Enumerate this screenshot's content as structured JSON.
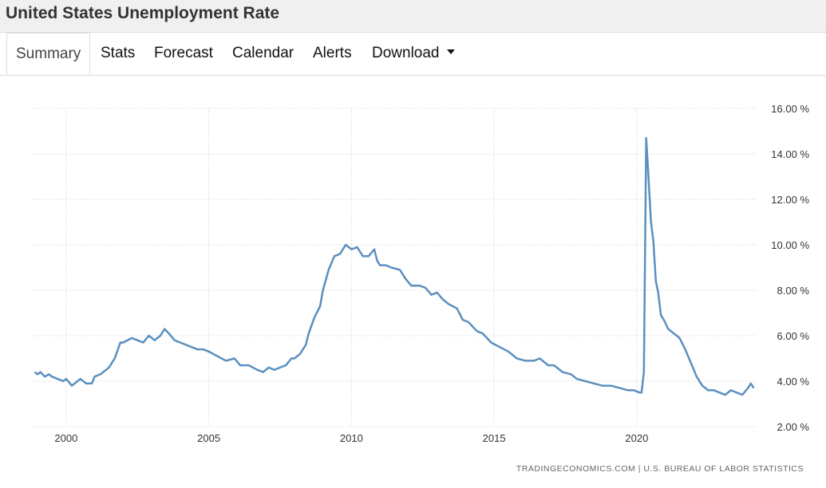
{
  "page_title": "United States Unemployment Rate",
  "tabs": [
    {
      "label": "Summary",
      "active": true
    },
    {
      "label": "Stats",
      "active": false
    },
    {
      "label": "Forecast",
      "active": false
    },
    {
      "label": "Calendar",
      "active": false
    },
    {
      "label": "Alerts",
      "active": false
    },
    {
      "label": "Download",
      "active": false,
      "dropdown": true
    }
  ],
  "source": "TRADINGECONOMICS.COM | U.S. BUREAU OF LABOR STATISTICS",
  "colors": {
    "line": "#5b8fbf",
    "grid": "#d0d0d0"
  },
  "chart_data": {
    "type": "line",
    "title": "",
    "xlabel": "",
    "ylabel": "",
    "xlim": [
      1998.8,
      2024.2
    ],
    "ylim": [
      2,
      16
    ],
    "y_ticks": [
      2,
      4,
      6,
      8,
      10,
      12,
      14,
      16
    ],
    "y_tick_labels": [
      "2.00 %",
      "4.00 %",
      "6.00 %",
      "8.00 %",
      "10.00 %",
      "12.00 %",
      "14.00 %",
      "16.00 %"
    ],
    "x_ticks": [
      2000,
      2005,
      2010,
      2015,
      2020
    ],
    "x_tick_labels": [
      "2000",
      "2005",
      "2010",
      "2015",
      "2020"
    ],
    "grid": true,
    "series": [
      {
        "x": [
          1998.9,
          1999.0,
          1999.1,
          1999.25,
          1999.4,
          1999.5,
          1999.7,
          1999.9,
          2000.0,
          2000.2,
          2000.4,
          2000.5,
          2000.7,
          2000.9,
          2001.0,
          2001.2,
          2001.4,
          2001.5,
          2001.7,
          2001.9,
          2002.0,
          2002.3,
          2002.5,
          2002.7,
          2002.9,
          2003.1,
          2003.3,
          2003.45,
          2003.6,
          2003.8,
          2004.0,
          2004.2,
          2004.4,
          2004.6,
          2004.8,
          2005.0,
          2005.3,
          2005.6,
          2005.9,
          2006.1,
          2006.4,
          2006.7,
          2006.9,
          2007.1,
          2007.3,
          2007.5,
          2007.7,
          2007.9,
          2008.0,
          2008.2,
          2008.4,
          2008.5,
          2008.7,
          2008.9,
          2009.0,
          2009.2,
          2009.4,
          2009.6,
          2009.8,
          2010.0,
          2010.2,
          2010.4,
          2010.6,
          2010.8,
          2010.9,
          2011.0,
          2011.2,
          2011.4,
          2011.7,
          2011.9,
          2012.1,
          2012.4,
          2012.6,
          2012.8,
          2013.0,
          2013.2,
          2013.4,
          2013.7,
          2013.9,
          2014.1,
          2014.4,
          2014.6,
          2014.9,
          2015.2,
          2015.5,
          2015.8,
          2016.1,
          2016.4,
          2016.6,
          2016.9,
          2017.1,
          2017.4,
          2017.7,
          2017.9,
          2018.2,
          2018.5,
          2018.8,
          2019.1,
          2019.4,
          2019.7,
          2019.9,
          2020.1,
          2020.17,
          2020.25,
          2020.33,
          2020.4,
          2020.5,
          2020.58,
          2020.67,
          2020.75,
          2020.85,
          2020.95,
          2021.1,
          2021.3,
          2021.5,
          2021.7,
          2021.9,
          2022.1,
          2022.3,
          2022.5,
          2022.7,
          2022.9,
          2023.1,
          2023.3,
          2023.5,
          2023.7,
          2023.9,
          2024.0,
          2024.1
        ],
        "values": [
          4.4,
          4.3,
          4.4,
          4.2,
          4.3,
          4.2,
          4.1,
          4.0,
          4.1,
          3.8,
          4.0,
          4.1,
          3.9,
          3.9,
          4.2,
          4.3,
          4.5,
          4.6,
          5.0,
          5.7,
          5.7,
          5.9,
          5.8,
          5.7,
          6.0,
          5.8,
          6.0,
          6.3,
          6.1,
          5.8,
          5.7,
          5.6,
          5.5,
          5.4,
          5.4,
          5.3,
          5.1,
          4.9,
          5.0,
          4.7,
          4.7,
          4.5,
          4.4,
          4.6,
          4.5,
          4.6,
          4.7,
          5.0,
          5.0,
          5.2,
          5.6,
          6.1,
          6.8,
          7.3,
          8.0,
          8.9,
          9.5,
          9.6,
          10.0,
          9.8,
          9.9,
          9.5,
          9.5,
          9.8,
          9.3,
          9.1,
          9.1,
          9.0,
          8.9,
          8.5,
          8.2,
          8.2,
          8.1,
          7.8,
          7.9,
          7.6,
          7.4,
          7.2,
          6.7,
          6.6,
          6.2,
          6.1,
          5.7,
          5.5,
          5.3,
          5.0,
          4.9,
          4.9,
          5.0,
          4.7,
          4.7,
          4.4,
          4.3,
          4.1,
          4.0,
          3.9,
          3.8,
          3.8,
          3.7,
          3.6,
          3.6,
          3.5,
          3.5,
          4.4,
          14.7,
          13.2,
          11.0,
          10.2,
          8.4,
          7.9,
          6.9,
          6.7,
          6.3,
          6.1,
          5.9,
          5.4,
          4.8,
          4.2,
          3.8,
          3.6,
          3.6,
          3.5,
          3.4,
          3.6,
          3.5,
          3.4,
          3.7,
          3.9,
          3.7
        ]
      }
    ]
  }
}
